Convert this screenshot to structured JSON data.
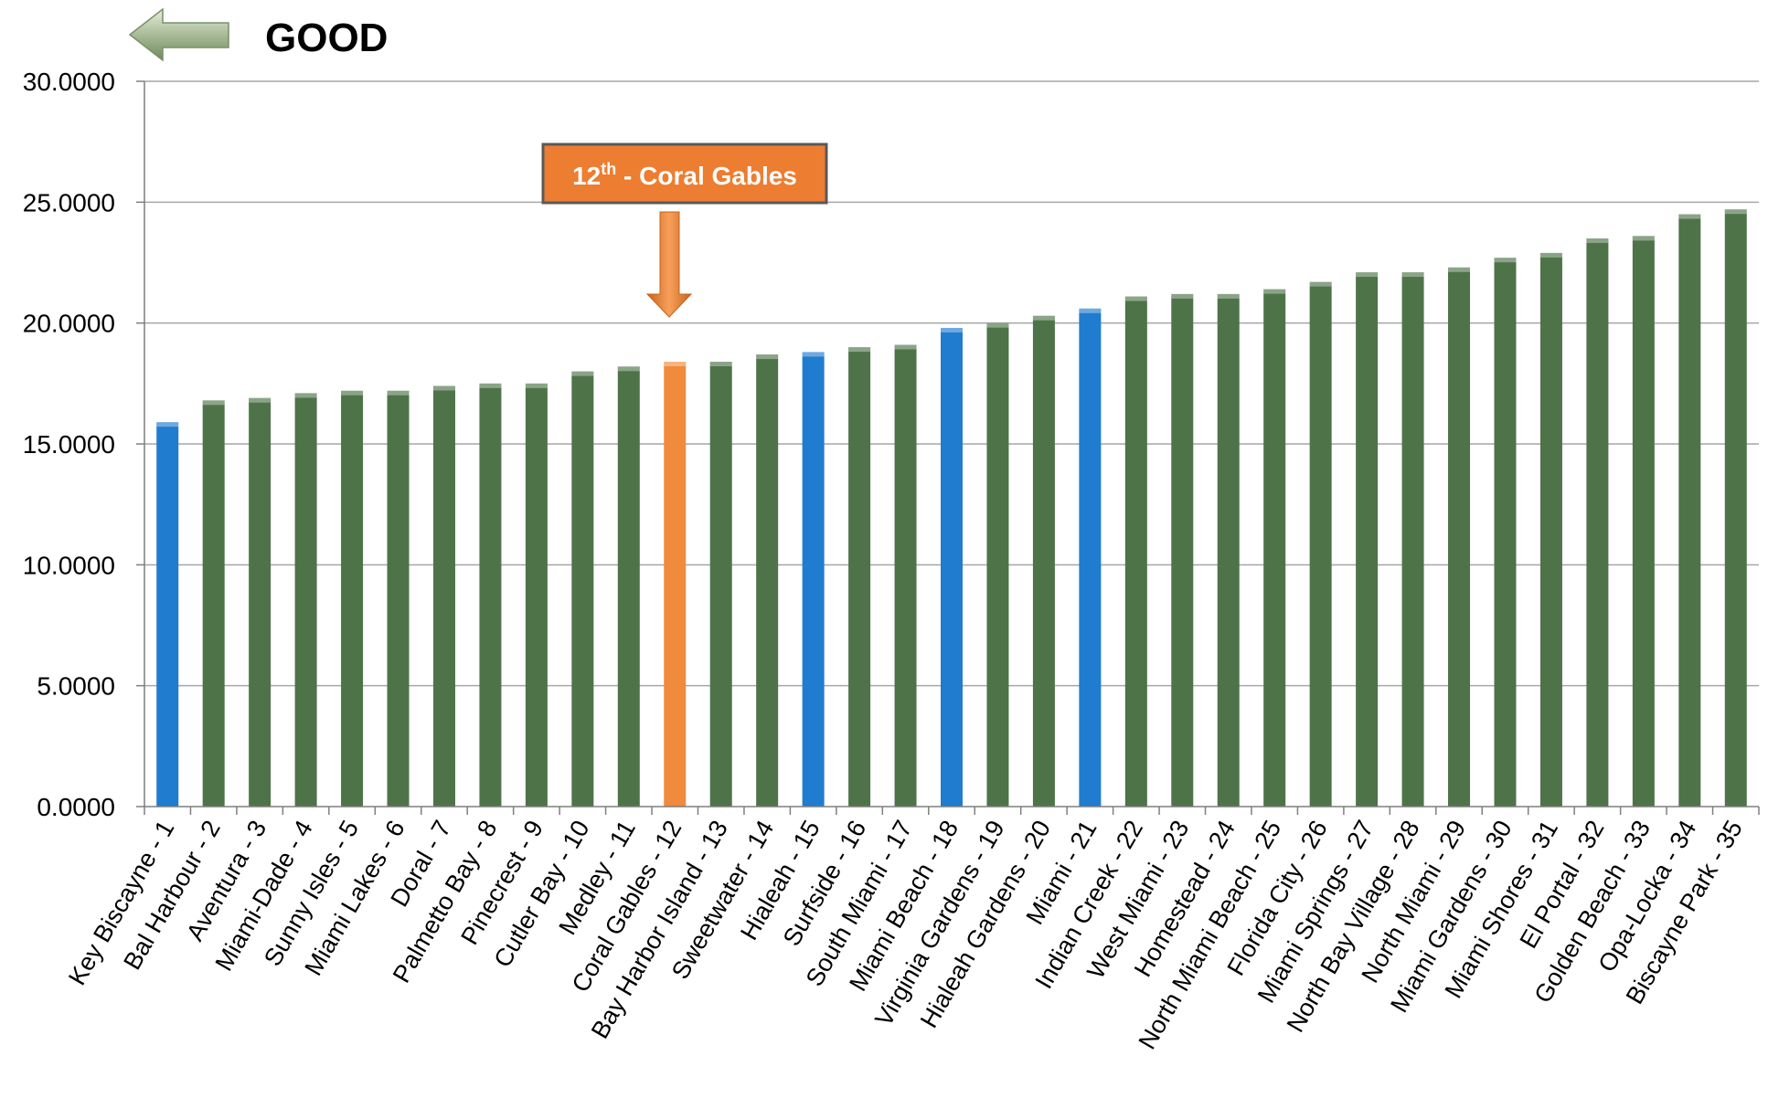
{
  "good_label": "GOOD",
  "callout": {
    "ordinal": "12",
    "suffix": "th",
    "text": " - Coral Gables",
    "target_index": 11
  },
  "colors": {
    "green": "#4e7349",
    "blue": "#1f7ccf",
    "orange": "#f08a3c",
    "grid": "#a6a6a6",
    "callout_border": "#595959",
    "arrow_green": "#8fa57e"
  },
  "chart_data": {
    "type": "bar",
    "title": "",
    "xlabel": "",
    "ylabel": "",
    "ylim": [
      0,
      30
    ],
    "yticks": [
      "0.0000",
      "5.0000",
      "10.0000",
      "15.0000",
      "20.0000",
      "25.0000",
      "30.0000"
    ],
    "grid": true,
    "categories": [
      "Key Biscayne - 1",
      "Bal Harbour - 2",
      "Aventura - 3",
      "Miami-Dade - 4",
      "Sunny Isles - 5",
      "Miami Lakes - 6",
      "Doral - 7",
      "Palmetto Bay - 8",
      "Pinecrest - 9",
      "Cutler Bay - 10",
      "Medley - 11",
      "Coral Gables - 12",
      "Bay Harbor Island - 13",
      "Sweetwater - 14",
      "Hialeah - 15",
      "Surfside - 16",
      "South Miami - 17",
      "Miami Beach - 18",
      "Virginia Gardens - 19",
      "Hialeah Gardens - 20",
      "Miami - 21",
      "Indian Creek - 22",
      "West Miami - 23",
      "Homestead - 24",
      "North Miami Beach - 25",
      "Florida City - 26",
      "Miami Springs - 27",
      "North Bay Village - 28",
      "North Miami - 29",
      "Miami Gardens - 30",
      "Miami Shores - 31",
      "El Portal - 32",
      "Golden Beach - 33",
      "Opa-Locka - 34",
      "Biscayne Park - 35"
    ],
    "values": [
      15.9,
      16.8,
      16.9,
      17.1,
      17.2,
      17.2,
      17.4,
      17.5,
      17.5,
      18.0,
      18.2,
      18.4,
      18.4,
      18.7,
      18.8,
      19.0,
      19.1,
      19.8,
      20.0,
      20.3,
      20.6,
      21.1,
      21.2,
      21.2,
      21.4,
      21.7,
      22.1,
      22.1,
      22.3,
      22.7,
      22.9,
      23.5,
      23.6,
      24.5,
      24.7
    ],
    "bar_colors": [
      "blue",
      "green",
      "green",
      "green",
      "green",
      "green",
      "green",
      "green",
      "green",
      "green",
      "green",
      "orange",
      "green",
      "green",
      "blue",
      "green",
      "green",
      "blue",
      "green",
      "green",
      "blue",
      "green",
      "green",
      "green",
      "green",
      "green",
      "green",
      "green",
      "green",
      "green",
      "green",
      "green",
      "green",
      "green",
      "green"
    ]
  }
}
